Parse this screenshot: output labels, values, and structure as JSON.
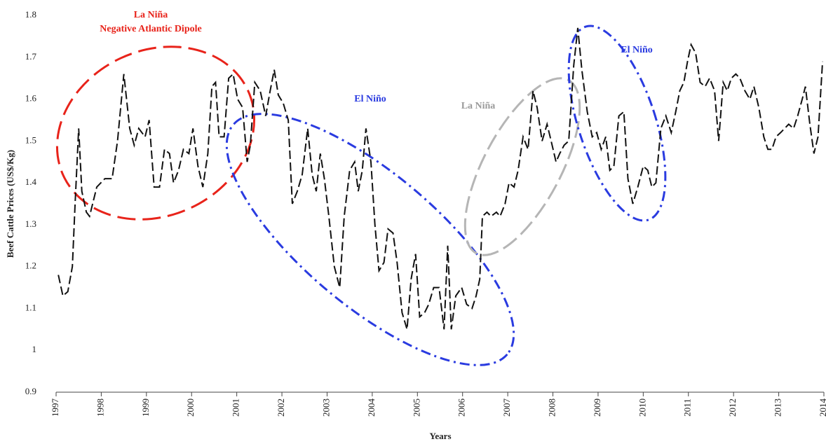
{
  "chart_data": {
    "type": "line",
    "y_label": "Beef Cattle Prices (US$/Kg)",
    "x_label": "Years",
    "color": "#111111",
    "xlim": [
      1997,
      2014
    ],
    "xticks": [
      1997,
      1998,
      1999,
      2000,
      2001,
      2002,
      2003,
      2004,
      2005,
      2006,
      2007,
      2008,
      2009,
      2010,
      2011,
      2012,
      2013,
      2014
    ],
    "ylim": [
      0.9,
      1.8
    ],
    "yticks": [
      0.9,
      1,
      1.1,
      1.2,
      1.3,
      1.4,
      1.5,
      1.6,
      1.7,
      1.8
    ],
    "x": [
      1997.05,
      1997.15,
      1997.26,
      1997.36,
      1997.42,
      1997.5,
      1997.57,
      1997.67,
      1997.74,
      1997.9,
      1998.08,
      1998.24,
      1998.36,
      1998.5,
      1998.63,
      1998.73,
      1998.83,
      1998.97,
      1999.06,
      1999.17,
      1999.29,
      1999.4,
      1999.51,
      1999.6,
      1999.71,
      1999.82,
      1999.94,
      2000.03,
      2000.14,
      2000.25,
      2000.36,
      2000.45,
      2000.53,
      2000.61,
      2000.72,
      2000.82,
      2000.92,
      2001.02,
      2001.13,
      2001.23,
      2001.3,
      2001.4,
      2001.52,
      2001.64,
      2001.74,
      2001.83,
      2001.92,
      2002.03,
      2002.14,
      2002.23,
      2002.34,
      2002.45,
      2002.57,
      2002.67,
      2002.76,
      2002.85,
      2002.94,
      2003.04,
      2003.16,
      2003.28,
      2003.38,
      2003.5,
      2003.61,
      2003.69,
      2003.78,
      2003.86,
      2003.97,
      2004.06,
      2004.15,
      2004.26,
      2004.35,
      2004.46,
      2004.55,
      2004.66,
      2004.77,
      2004.86,
      2004.96,
      2005.05,
      2005.16,
      2005.25,
      2005.36,
      2005.48,
      2005.59,
      2005.67,
      2005.75,
      2005.85,
      2005.98,
      2006.09,
      2006.21,
      2006.3,
      2006.38,
      2006.44,
      2006.54,
      2006.63,
      2006.75,
      2006.83,
      2006.94,
      2007.03,
      2007.14,
      2007.23,
      2007.34,
      2007.45,
      2007.56,
      2007.65,
      2007.76,
      2007.87,
      2007.96,
      2008.07,
      2008.15,
      2008.25,
      2008.35,
      2008.46,
      2008.55,
      2008.64,
      2008.76,
      2008.87,
      2008.97,
      2009.07,
      2009.17,
      2009.26,
      2009.35,
      2009.46,
      2009.57,
      2009.66,
      2009.77,
      2009.88,
      2010.0,
      2010.1,
      2010.19,
      2010.28,
      2010.39,
      2010.5,
      2010.62,
      2010.72,
      2010.81,
      2010.9,
      2010.98,
      2011.06,
      2011.16,
      2011.26,
      2011.37,
      2011.47,
      2011.58,
      2011.67,
      2011.77,
      2011.86,
      2011.95,
      2012.05,
      2012.14,
      2012.25,
      2012.36,
      2012.45,
      2012.56,
      2012.67,
      2012.76,
      2012.85,
      2012.94,
      2013.04,
      2013.13,
      2013.22,
      2013.33,
      2013.42,
      2013.52,
      2013.59,
      2013.69,
      2013.78,
      2013.87,
      2013.97
    ],
    "values": [
      1.18,
      1.13,
      1.14,
      1.2,
      1.35,
      1.53,
      1.38,
      1.33,
      1.32,
      1.39,
      1.41,
      1.41,
      1.5,
      1.66,
      1.53,
      1.49,
      1.53,
      1.51,
      1.55,
      1.39,
      1.39,
      1.48,
      1.47,
      1.4,
      1.43,
      1.48,
      1.47,
      1.53,
      1.44,
      1.39,
      1.47,
      1.63,
      1.64,
      1.51,
      1.51,
      1.65,
      1.66,
      1.6,
      1.58,
      1.45,
      1.49,
      1.64,
      1.62,
      1.56,
      1.62,
      1.67,
      1.61,
      1.59,
      1.55,
      1.35,
      1.38,
      1.42,
      1.53,
      1.42,
      1.38,
      1.47,
      1.41,
      1.32,
      1.2,
      1.15,
      1.32,
      1.43,
      1.45,
      1.38,
      1.43,
      1.53,
      1.45,
      1.3,
      1.19,
      1.21,
      1.29,
      1.28,
      1.21,
      1.09,
      1.05,
      1.17,
      1.23,
      1.08,
      1.09,
      1.11,
      1.15,
      1.15,
      1.05,
      1.25,
      1.05,
      1.13,
      1.15,
      1.11,
      1.1,
      1.13,
      1.17,
      1.32,
      1.33,
      1.32,
      1.33,
      1.32,
      1.35,
      1.4,
      1.39,
      1.43,
      1.51,
      1.48,
      1.62,
      1.58,
      1.5,
      1.54,
      1.5,
      1.45,
      1.47,
      1.49,
      1.5,
      1.68,
      1.77,
      1.67,
      1.57,
      1.51,
      1.52,
      1.48,
      1.51,
      1.43,
      1.44,
      1.56,
      1.57,
      1.41,
      1.35,
      1.39,
      1.44,
      1.43,
      1.39,
      1.4,
      1.53,
      1.56,
      1.52,
      1.57,
      1.62,
      1.64,
      1.69,
      1.73,
      1.71,
      1.64,
      1.63,
      1.65,
      1.62,
      1.5,
      1.64,
      1.62,
      1.65,
      1.66,
      1.65,
      1.62,
      1.6,
      1.63,
      1.58,
      1.51,
      1.48,
      1.48,
      1.51,
      1.52,
      1.53,
      1.54,
      1.53,
      1.56,
      1.6,
      1.63,
      1.54,
      1.47,
      1.51,
      1.69
    ],
    "annotations": [
      {
        "text": "La Niña",
        "color": "#e8231a"
      },
      {
        "text": "Negative Atlantic Dipole",
        "color": "#e8231a"
      },
      {
        "text": "El Niño",
        "color": "#2a3be0"
      },
      {
        "text": "La Niña",
        "color": "#9a9a9a"
      },
      {
        "text": "El Niño",
        "color": "#2a3be0"
      }
    ]
  }
}
